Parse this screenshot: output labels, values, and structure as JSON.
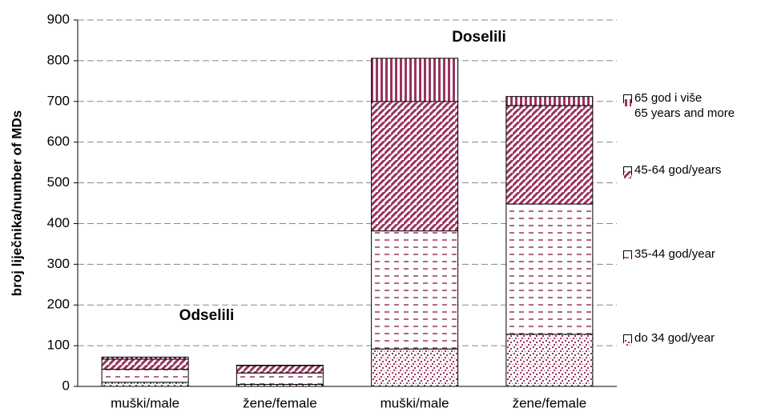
{
  "chart_data": {
    "type": "stacked_bar",
    "ylabel": "broj liječnika/number of MDs",
    "categories": [
      "muški/male",
      "žene/female",
      "muški/male",
      "žene/female"
    ],
    "series": [
      {
        "name": "do 34 god/year",
        "color": "#99335f",
        "pattern": "dots",
        "values": [
          10,
          5,
          92,
          128
        ]
      },
      {
        "name": "35-44 god/year",
        "color": "#99335f",
        "pattern": "dashes",
        "values": [
          32,
          28,
          290,
          320
        ]
      },
      {
        "name": "45-64 god/years",
        "color": "#99335f",
        "pattern": "diagonal",
        "values": [
          25,
          18,
          318,
          242
        ]
      },
      {
        "name": "65 god i više\n65 years and more",
        "color": "#99335f",
        "pattern": "vertical",
        "values": [
          5,
          1,
          106,
          22
        ]
      }
    ],
    "annotations": [
      "Odselili",
      "Doselili"
    ],
    "ylim": [
      0,
      900
    ],
    "yticks": [
      0,
      100,
      200,
      300,
      400,
      500,
      600,
      700,
      800,
      900
    ],
    "grid": true
  }
}
